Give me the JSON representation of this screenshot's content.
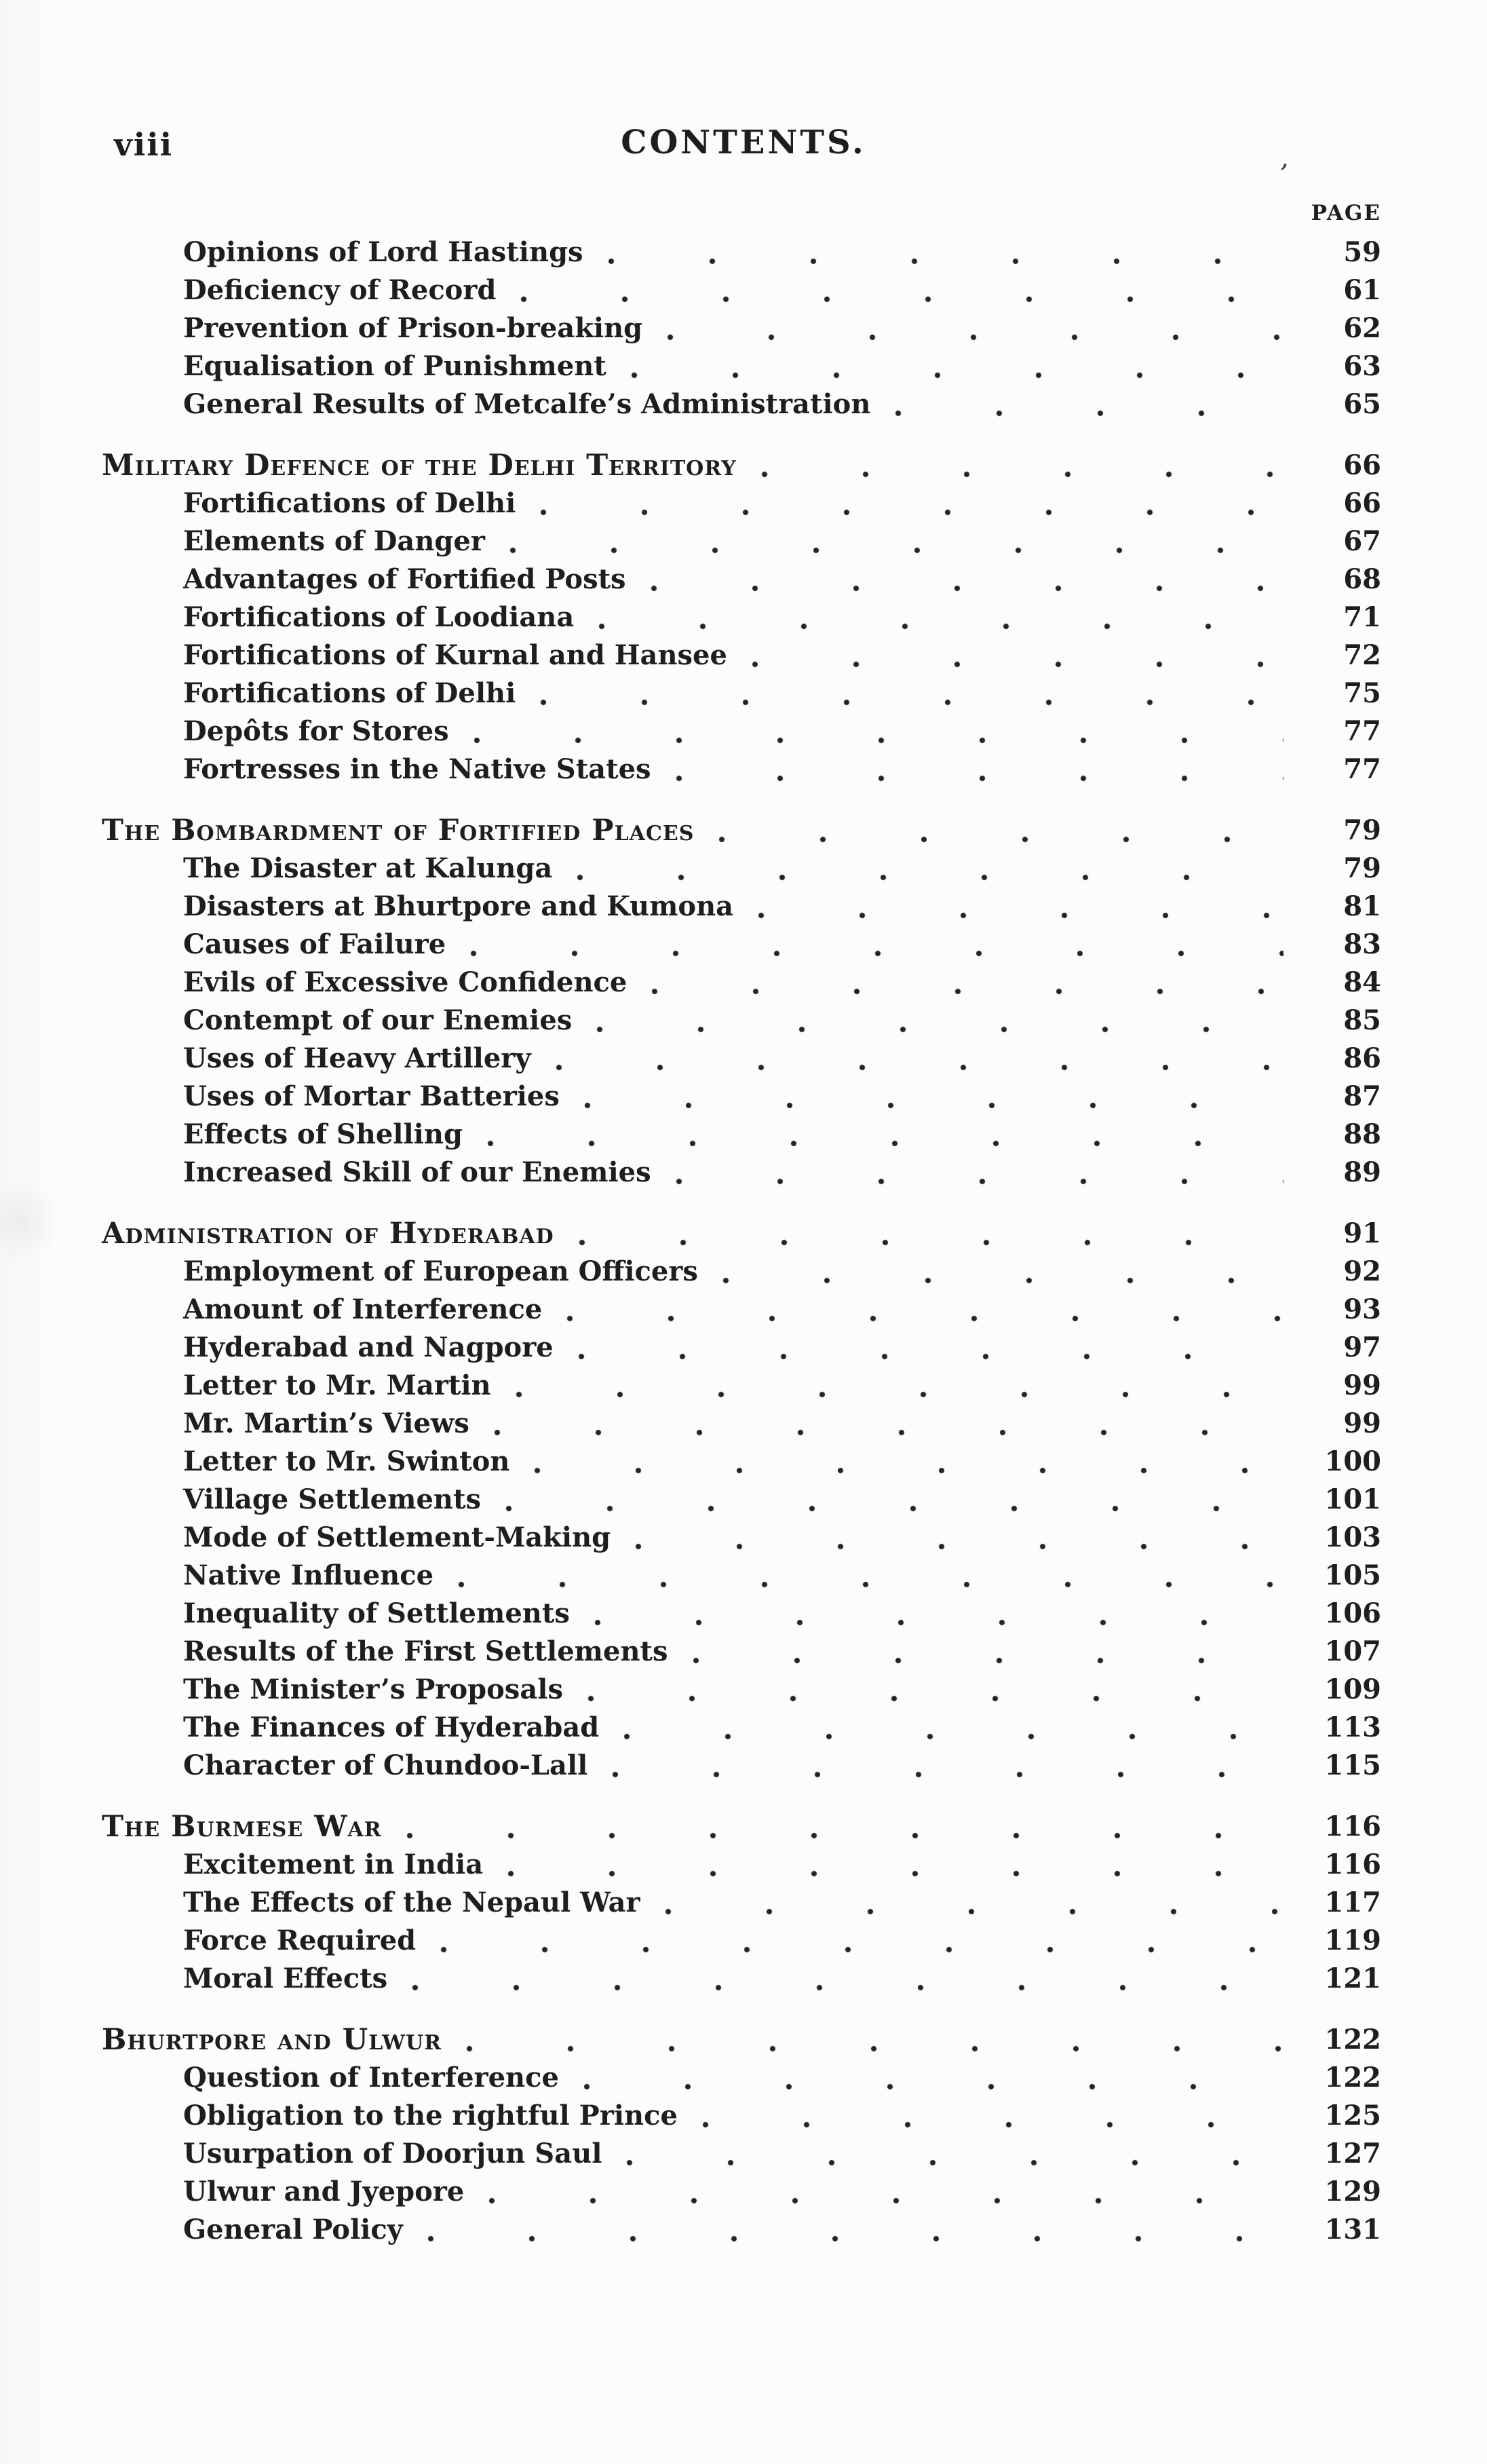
{
  "page": {
    "folio": "viii",
    "header_title": "CONTENTS.",
    "page_column_label": "PAGE",
    "scan_artifact_mark": ",",
    "ink_color": "#1e1e1e",
    "paper_color": "#fcfcfa"
  },
  "toc": {
    "sections": [
      {
        "heading": null,
        "entries": [
          {
            "label": "Opinions of Lord Hastings",
            "page": "59"
          },
          {
            "label": "Deficiency of Record",
            "page": "61"
          },
          {
            "label": "Prevention of Prison-breaking",
            "page": "62"
          },
          {
            "label": "Equalisation of Punishment",
            "page": "63"
          },
          {
            "label": "General Results of Metcalfe’s Administration",
            "page": "65"
          }
        ]
      },
      {
        "heading": {
          "label": "Military Defence of the Delhi Territory",
          "page": "66"
        },
        "entries": [
          {
            "label": "Fortifications of Delhi",
            "page": "66"
          },
          {
            "label": "Elements of Danger",
            "page": "67"
          },
          {
            "label": "Advantages of Fortified Posts",
            "page": "68"
          },
          {
            "label": "Fortifications of Loodiana",
            "page": "71"
          },
          {
            "label": "Fortifications of Kurnal and Hansee",
            "page": "72"
          },
          {
            "label": "Fortifications of Delhi",
            "page": "75"
          },
          {
            "label": "Depôts for Stores",
            "page": "77"
          },
          {
            "label": "Fortresses in the Native States",
            "page": "77"
          }
        ]
      },
      {
        "heading": {
          "label": "The Bombardment of Fortified Places",
          "page": "79"
        },
        "entries": [
          {
            "label": "The Disaster at Kalunga",
            "page": "79"
          },
          {
            "label": "Disasters at Bhurtpore and Kumona",
            "page": "81"
          },
          {
            "label": "Causes of Failure",
            "page": "83"
          },
          {
            "label": "Evils of Excessive Confidence",
            "page": "84"
          },
          {
            "label": "Contempt of our Enemies",
            "page": "85"
          },
          {
            "label": "Uses of Heavy Artillery",
            "page": "86"
          },
          {
            "label": "Uses of Mortar Batteries",
            "page": "87"
          },
          {
            "label": "Effects of Shelling",
            "page": "88"
          },
          {
            "label": "Increased Skill of our Enemies",
            "page": "89"
          }
        ]
      },
      {
        "heading": {
          "label": "Administration of Hyderabad",
          "page": "91"
        },
        "entries": [
          {
            "label": "Employment of European Officers",
            "page": "92"
          },
          {
            "label": "Amount of Interference",
            "page": "93"
          },
          {
            "label": "Hyderabad and Nagpore",
            "page": "97"
          },
          {
            "label": "Letter to Mr. Martin",
            "page": "99"
          },
          {
            "label": "Mr. Martin’s Views",
            "page": "99"
          },
          {
            "label": "Letter to Mr. Swinton",
            "page": "100"
          },
          {
            "label": "Village Settlements",
            "page": "101"
          },
          {
            "label": "Mode of Settlement-Making",
            "page": "103"
          },
          {
            "label": "Native Influence",
            "page": "105"
          },
          {
            "label": "Inequality of Settlements",
            "page": "106"
          },
          {
            "label": "Results of the First Settlements",
            "page": "107"
          },
          {
            "label": "The Minister’s Proposals",
            "page": "109"
          },
          {
            "label": "The Finances of Hyderabad",
            "page": "113"
          },
          {
            "label": "Character of Chundoo-Lall",
            "page": "115"
          }
        ]
      },
      {
        "heading": {
          "label": "The Burmese War",
          "page": "116"
        },
        "entries": [
          {
            "label": "Excitement in India",
            "page": "116"
          },
          {
            "label": "The Effects of the Nepaul War",
            "page": "117"
          },
          {
            "label": "Force Required",
            "page": "119"
          },
          {
            "label": "Moral Effects",
            "page": "121"
          }
        ]
      },
      {
        "heading": {
          "label": "Bhurtpore and Ulwur",
          "page": "122"
        },
        "entries": [
          {
            "label": "Question of Interference",
            "page": "122"
          },
          {
            "label": "Obligation to the rightful Prince",
            "page": "125"
          },
          {
            "label": "Usurpation of Doorjun Saul",
            "page": "127"
          },
          {
            "label": "Ulwur and Jyepore",
            "page": "129"
          },
          {
            "label": "General Policy",
            "page": "131"
          }
        ]
      }
    ]
  }
}
